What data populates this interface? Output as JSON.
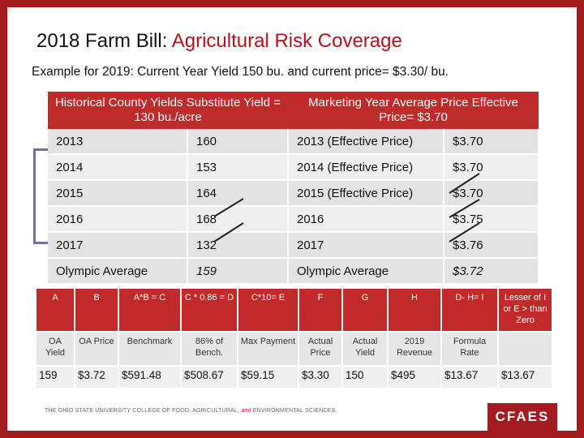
{
  "title": {
    "prefix": "2018 Farm Bill: ",
    "accent": "Agricultural Risk Coverage"
  },
  "subtitle": "Example for 2019: Current Year Yield 150 bu. and current price= $3.30/ bu.",
  "headers": {
    "yields": "Historical County Yields Substitute Yield = 130 bu./acre",
    "prices": "Marketing Year Average Price Effective Price= $3.70"
  },
  "rows": [
    {
      "year": "2013",
      "yield": "160",
      "price_label": "2013 (Effective Price)",
      "price": "$3.70"
    },
    {
      "year": "2014",
      "yield": "153",
      "price_label": "2014 (Effective Price)",
      "price": "$3.70"
    },
    {
      "year": "2015",
      "yield": "164",
      "price_label": "2015 (Effective Price)",
      "price": "$3.70"
    },
    {
      "year": "2016",
      "yield": "168",
      "price_label": "2016",
      "price": "$3.75"
    },
    {
      "year": "2017",
      "yield": "132",
      "price_label": "2017",
      "price": "$3.76"
    }
  ],
  "olympic": {
    "label": "Olympic Average",
    "yield": "159",
    "price_label": "Olympic Average",
    "price": "$3.72"
  },
  "calc": {
    "headers": [
      "A",
      "B",
      "A*B = C",
      "C * 0.86 = D",
      "C*10= E",
      "F",
      "G",
      "H",
      "D- H= I",
      "Lesser of I or E > than Zero"
    ],
    "labels": [
      "OA Yield",
      "OA Price",
      "Benchmark",
      "86% of Bench.",
      "Max Payment",
      "Actual Price",
      "Actual Yield",
      "2019 Revenue",
      "Formula Rate",
      ""
    ],
    "values": [
      "159",
      "$3.72",
      "$591.48",
      "$508.67",
      "$59.15",
      "$3.30",
      "150",
      "$495",
      "$13.67",
      "$13.67"
    ]
  },
  "footer": {
    "university": "THE OHIO STATE UNIVERSITY COLLEGE OF FOOD, AGRICULTURAL,",
    "amp": "and",
    "env": "ENVIRONMENTAL SCIENCES",
    "logo": "CFAES"
  },
  "colors": {
    "accent": "#b5121b",
    "header_fill": "#bf2b2b",
    "bracket": "#7b6aa6",
    "strike": "#222222"
  }
}
